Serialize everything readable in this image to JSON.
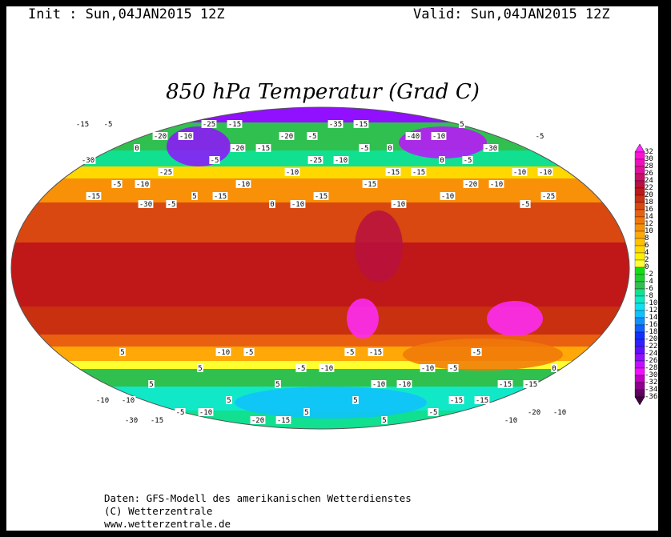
{
  "header": {
    "init": "Init : Sun,04JAN2015 12Z",
    "valid": "Valid: Sun,04JAN2015 12Z"
  },
  "title": "850 hPa Temperatur (Grad C)",
  "map": {
    "variable": "850 hPa temperature",
    "unit": "Grad C",
    "projection": "Robinson world",
    "contour_labels": [
      "-15",
      "-20",
      "-20",
      "-25",
      "-15",
      "-20",
      "-25",
      "-30",
      "-10",
      "-5",
      "-10",
      "-15",
      "-20",
      "-30",
      "-25",
      "-20",
      "-5",
      "0",
      "-10",
      "-5",
      "5",
      "0",
      "-5",
      "-10",
      "-15",
      "-10",
      "-5",
      "-20",
      "-35",
      "-40",
      "-30",
      "-30",
      "-25",
      "-10",
      "-15",
      "-10",
      "-5",
      "0",
      "5",
      "5",
      "5",
      "5",
      "5",
      "-5",
      "0",
      "-5",
      "-10",
      "-15",
      "-10",
      "-5",
      "5",
      "5",
      "5",
      "5",
      "-5",
      "-10",
      "-5",
      "-10",
      "-15",
      "-10",
      "-15",
      "-10",
      "-15",
      "-5",
      "-5",
      "-10",
      "-10",
      "-15",
      "-10",
      "-15",
      "-15",
      "-5",
      "0",
      "-5",
      "-10",
      "-10",
      "-15",
      "-10",
      "-15",
      "-5",
      "-15",
      "-10",
      "-10",
      "-15",
      "-15",
      "-10"
    ],
    "colorbar": {
      "labels": [
        "32",
        "30",
        "28",
        "26",
        "24",
        "22",
        "20",
        "18",
        "16",
        "14",
        "12",
        "10",
        "8",
        "6",
        "4",
        "2",
        "0",
        "-2",
        "-4",
        "-6",
        "-8",
        "-10",
        "-12",
        "-14",
        "-16",
        "-18",
        "-20",
        "-22",
        "-24",
        "-26",
        "-28",
        "-30",
        "-32",
        "-34",
        "-36"
      ],
      "colors": [
        "#ff2cff",
        "#ff10d8",
        "#f010b8",
        "#e0109a",
        "#c81068",
        "#b81040",
        "#c01818",
        "#c83010",
        "#d84810",
        "#e86010",
        "#f07808",
        "#f89008",
        "#ffa808",
        "#ffc000",
        "#ffd800",
        "#fff000",
        "#ffff30",
        "#10e010",
        "#20d030",
        "#30c050",
        "#10e090",
        "#10e8c8",
        "#10e0f0",
        "#10c0ff",
        "#1090ff",
        "#1060ff",
        "#1030ff",
        "#3020ff",
        "#6010ff",
        "#9010ff",
        "#c010ff",
        "#f010ff",
        "#c000c0",
        "#900090",
        "#600060",
        "#400040"
      ]
    }
  },
  "footer": {
    "line1": "Daten: GFS-Modell des amerikanischen Wetterdienstes",
    "line2": "(C) Wetterzentrale",
    "line3": "www.wetterzentrale.de"
  }
}
